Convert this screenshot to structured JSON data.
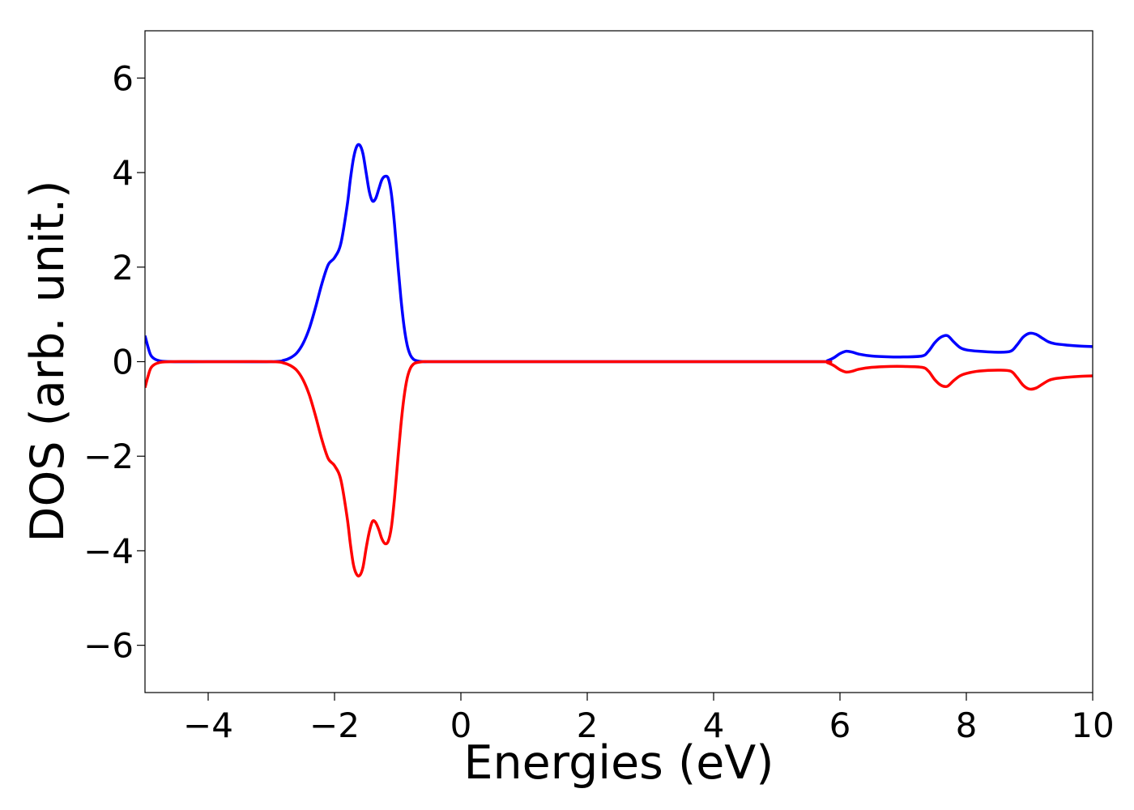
{
  "chart_data": {
    "type": "line",
    "xlabel": "Energies (eV)",
    "ylabel": "DOS (arb. unit.)",
    "xlim": [
      -5,
      10
    ],
    "ylim": [
      -7,
      7
    ],
    "x_ticks": [
      -4,
      -2,
      0,
      2,
      4,
      6,
      8,
      10
    ],
    "x_tick_labels": [
      "−4",
      "−2",
      "0",
      "2",
      "4",
      "6",
      "8",
      "10"
    ],
    "y_ticks": [
      -6,
      -4,
      -2,
      0,
      2,
      4,
      6
    ],
    "y_tick_labels": [
      "−6",
      "−4",
      "−2",
      "0",
      "2",
      "4",
      "6"
    ],
    "grid": false,
    "legend": "none",
    "series": [
      {
        "color": "#0000ff",
        "x": [
          -5.0,
          -4.95,
          -4.9,
          -4.8,
          -4.6,
          -4.0,
          -3.0,
          -2.8,
          -2.7,
          -2.6,
          -2.5,
          -2.4,
          -2.3,
          -2.2,
          -2.1,
          -2.0,
          -1.9,
          -1.8,
          -1.75,
          -1.7,
          -1.65,
          -1.6,
          -1.55,
          -1.5,
          -1.45,
          -1.4,
          -1.35,
          -1.3,
          -1.25,
          -1.2,
          -1.15,
          -1.1,
          -1.05,
          -1.0,
          -0.95,
          -0.9,
          -0.85,
          -0.8,
          -0.75,
          -0.7,
          -0.6,
          -0.5,
          -0.4,
          -0.2,
          0.0,
          2.0,
          4.0,
          5.7,
          5.8,
          5.9,
          6.0,
          6.1,
          6.2,
          6.3,
          6.5,
          6.8,
          7.0,
          7.3,
          7.4,
          7.5,
          7.6,
          7.7,
          7.8,
          7.9,
          8.0,
          8.2,
          8.5,
          8.7,
          8.8,
          8.9,
          9.0,
          9.1,
          9.2,
          9.3,
          9.4,
          9.6,
          9.8,
          10.0
        ],
        "y": [
          0.55,
          0.3,
          0.12,
          0.03,
          0.0,
          0.0,
          0.0,
          0.03,
          0.08,
          0.18,
          0.38,
          0.7,
          1.15,
          1.65,
          2.05,
          2.2,
          2.5,
          3.3,
          3.85,
          4.3,
          4.55,
          4.58,
          4.4,
          4.0,
          3.6,
          3.4,
          3.45,
          3.65,
          3.85,
          3.92,
          3.88,
          3.55,
          2.9,
          2.1,
          1.35,
          0.75,
          0.35,
          0.14,
          0.05,
          0.02,
          0.0,
          0.0,
          0.0,
          0.0,
          0.0,
          0.0,
          0.0,
          0.0,
          0.02,
          0.08,
          0.17,
          0.22,
          0.2,
          0.16,
          0.12,
          0.1,
          0.1,
          0.12,
          0.22,
          0.4,
          0.52,
          0.55,
          0.42,
          0.3,
          0.25,
          0.22,
          0.2,
          0.22,
          0.35,
          0.52,
          0.6,
          0.58,
          0.5,
          0.42,
          0.38,
          0.35,
          0.33,
          0.32
        ]
      },
      {
        "color": "#ff0000",
        "x": [
          -5.0,
          -4.95,
          -4.9,
          -4.8,
          -4.6,
          -4.0,
          -3.0,
          -2.8,
          -2.7,
          -2.6,
          -2.5,
          -2.4,
          -2.3,
          -2.2,
          -2.1,
          -2.0,
          -1.9,
          -1.8,
          -1.75,
          -1.7,
          -1.65,
          -1.6,
          -1.55,
          -1.5,
          -1.45,
          -1.4,
          -1.35,
          -1.3,
          -1.25,
          -1.2,
          -1.15,
          -1.1,
          -1.05,
          -1.0,
          -0.95,
          -0.9,
          -0.85,
          -0.8,
          -0.75,
          -0.7,
          -0.6,
          -0.5,
          -0.4,
          -0.2,
          0.0,
          2.0,
          4.0,
          5.7,
          5.8,
          5.9,
          6.0,
          6.1,
          6.2,
          6.3,
          6.5,
          6.8,
          7.0,
          7.3,
          7.4,
          7.5,
          7.6,
          7.7,
          7.8,
          7.9,
          8.0,
          8.2,
          8.5,
          8.7,
          8.8,
          8.9,
          9.0,
          9.1,
          9.2,
          9.3,
          9.4,
          9.6,
          9.8,
          10.0
        ],
        "y": [
          -0.55,
          -0.3,
          -0.12,
          -0.03,
          0.0,
          0.0,
          0.0,
          -0.03,
          -0.08,
          -0.18,
          -0.38,
          -0.7,
          -1.15,
          -1.65,
          -2.05,
          -2.2,
          -2.5,
          -3.3,
          -3.85,
          -4.3,
          -4.5,
          -4.52,
          -4.35,
          -3.95,
          -3.6,
          -3.38,
          -3.4,
          -3.55,
          -3.75,
          -3.85,
          -3.8,
          -3.5,
          -2.88,
          -2.1,
          -1.35,
          -0.75,
          -0.35,
          -0.14,
          -0.05,
          -0.02,
          0.0,
          0.0,
          0.0,
          0.0,
          0.0,
          0.0,
          0.0,
          0.0,
          -0.02,
          -0.08,
          -0.17,
          -0.22,
          -0.2,
          -0.16,
          -0.12,
          -0.1,
          -0.1,
          -0.12,
          -0.2,
          -0.38,
          -0.5,
          -0.52,
          -0.4,
          -0.3,
          -0.25,
          -0.2,
          -0.18,
          -0.2,
          -0.33,
          -0.5,
          -0.58,
          -0.56,
          -0.48,
          -0.4,
          -0.36,
          -0.33,
          -0.31,
          -0.3
        ]
      }
    ]
  }
}
